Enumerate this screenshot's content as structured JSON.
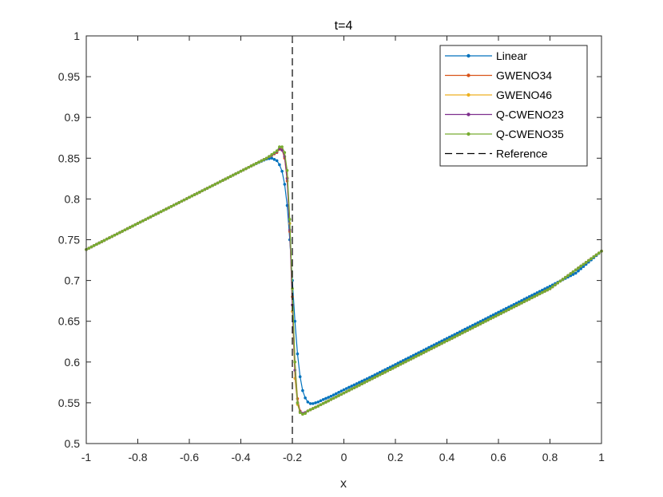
{
  "chart_data": {
    "type": "line",
    "title": "t=4",
    "xlabel": "x",
    "ylabel": "",
    "xlim": [
      -1,
      1
    ],
    "ylim": [
      0.5,
      1
    ],
    "x_ticks": [
      -1,
      -0.8,
      -0.6,
      -0.4,
      -0.2,
      0,
      0.2,
      0.4,
      0.6,
      0.8,
      1
    ],
    "x_tick_labels": [
      "-1",
      "-0.8",
      "-0.6",
      "-0.4",
      "-0.2",
      "0",
      "0.2",
      "0.4",
      "0.6",
      "0.8",
      "1"
    ],
    "y_ticks": [
      0.5,
      0.55,
      0.6,
      0.65,
      0.7,
      0.75,
      0.8,
      0.85,
      0.9,
      0.95,
      1
    ],
    "y_tick_labels": [
      "0.5",
      "0.55",
      "0.6",
      "0.65",
      "0.7",
      "0.75",
      "0.8",
      "0.85",
      "0.9",
      "0.95",
      "1"
    ],
    "grid": false,
    "legend_position": "top-right",
    "series": [
      {
        "name": "Linear",
        "color": "#0072BD",
        "x": [
          -1.0,
          -0.9,
          -0.8,
          -0.7,
          -0.6,
          -0.5,
          -0.4,
          -0.35,
          -0.3,
          -0.28,
          -0.26,
          -0.25,
          -0.24,
          -0.23,
          -0.22,
          -0.21,
          -0.2,
          -0.19,
          -0.18,
          -0.17,
          -0.16,
          -0.15,
          -0.14,
          -0.13,
          -0.12,
          -0.1,
          -0.08,
          -0.05,
          0.0,
          0.1,
          0.2,
          0.3,
          0.4,
          0.5,
          0.6,
          0.7,
          0.8,
          0.9,
          1.0
        ],
        "y": [
          0.738,
          0.754,
          0.77,
          0.786,
          0.802,
          0.818,
          0.834,
          0.842,
          0.849,
          0.85,
          0.847,
          0.842,
          0.834,
          0.818,
          0.792,
          0.75,
          0.7,
          0.65,
          0.61,
          0.582,
          0.565,
          0.556,
          0.551,
          0.549,
          0.549,
          0.551,
          0.554,
          0.558,
          0.566,
          0.581,
          0.597,
          0.613,
          0.629,
          0.645,
          0.661,
          0.677,
          0.693,
          0.709,
          0.736
        ]
      },
      {
        "name": "GWENO34",
        "color": "#D95319",
        "x": [
          -1.0,
          -0.8,
          -0.6,
          -0.4,
          -0.3,
          -0.26,
          -0.25,
          -0.24,
          -0.23,
          -0.22,
          -0.21,
          -0.2,
          -0.19,
          -0.18,
          -0.17,
          -0.16,
          -0.15,
          -0.14,
          -0.12,
          -0.1,
          0.0,
          0.2,
          0.4,
          0.6,
          0.8,
          1.0
        ],
        "y": [
          0.738,
          0.77,
          0.802,
          0.834,
          0.85,
          0.857,
          0.861,
          0.86,
          0.85,
          0.822,
          0.76,
          0.68,
          0.6,
          0.555,
          0.54,
          0.537,
          0.538,
          0.54,
          0.543,
          0.546,
          0.562,
          0.594,
          0.626,
          0.658,
          0.69,
          0.736
        ]
      },
      {
        "name": "GWENO46",
        "color": "#EDB120",
        "x": [
          -1.0,
          -0.8,
          -0.6,
          -0.4,
          -0.3,
          -0.26,
          -0.25,
          -0.24,
          -0.23,
          -0.22,
          -0.21,
          -0.2,
          -0.19,
          -0.18,
          -0.17,
          -0.16,
          -0.15,
          -0.14,
          -0.12,
          -0.1,
          0.0,
          0.2,
          0.4,
          0.6,
          0.8,
          1.0
        ],
        "y": [
          0.738,
          0.77,
          0.802,
          0.834,
          0.85,
          0.858,
          0.862,
          0.861,
          0.852,
          0.826,
          0.77,
          0.662,
          0.58,
          0.548,
          0.538,
          0.536,
          0.537,
          0.54,
          0.543,
          0.546,
          0.562,
          0.594,
          0.626,
          0.658,
          0.69,
          0.736
        ]
      },
      {
        "name": "Q-CWENO23",
        "color": "#7E2F8E",
        "x": [
          -1.0,
          -0.8,
          -0.6,
          -0.4,
          -0.3,
          -0.26,
          -0.25,
          -0.24,
          -0.23,
          -0.22,
          -0.21,
          -0.2,
          -0.19,
          -0.18,
          -0.17,
          -0.16,
          -0.15,
          -0.14,
          -0.12,
          -0.1,
          0.0,
          0.2,
          0.4,
          0.6,
          0.8,
          1.0
        ],
        "y": [
          0.738,
          0.77,
          0.802,
          0.834,
          0.85,
          0.858,
          0.862,
          0.86,
          0.852,
          0.825,
          0.762,
          0.67,
          0.59,
          0.55,
          0.539,
          0.537,
          0.538,
          0.54,
          0.543,
          0.546,
          0.562,
          0.594,
          0.626,
          0.658,
          0.69,
          0.736
        ]
      },
      {
        "name": "Q-CWENO35",
        "color": "#77AC30",
        "x": [
          -1.0,
          -0.8,
          -0.6,
          -0.4,
          -0.3,
          -0.26,
          -0.25,
          -0.24,
          -0.23,
          -0.22,
          -0.21,
          -0.2,
          -0.19,
          -0.18,
          -0.17,
          -0.16,
          -0.15,
          -0.14,
          -0.12,
          -0.1,
          0.0,
          0.2,
          0.4,
          0.6,
          0.8,
          1.0
        ],
        "y": [
          0.738,
          0.77,
          0.802,
          0.834,
          0.85,
          0.859,
          0.864,
          0.864,
          0.857,
          0.835,
          0.775,
          0.69,
          0.6,
          0.55,
          0.538,
          0.536,
          0.537,
          0.54,
          0.543,
          0.546,
          0.562,
          0.594,
          0.626,
          0.658,
          0.69,
          0.736
        ]
      }
    ],
    "reference": {
      "name": "Reference",
      "color": "#000000",
      "x": -0.2
    }
  }
}
